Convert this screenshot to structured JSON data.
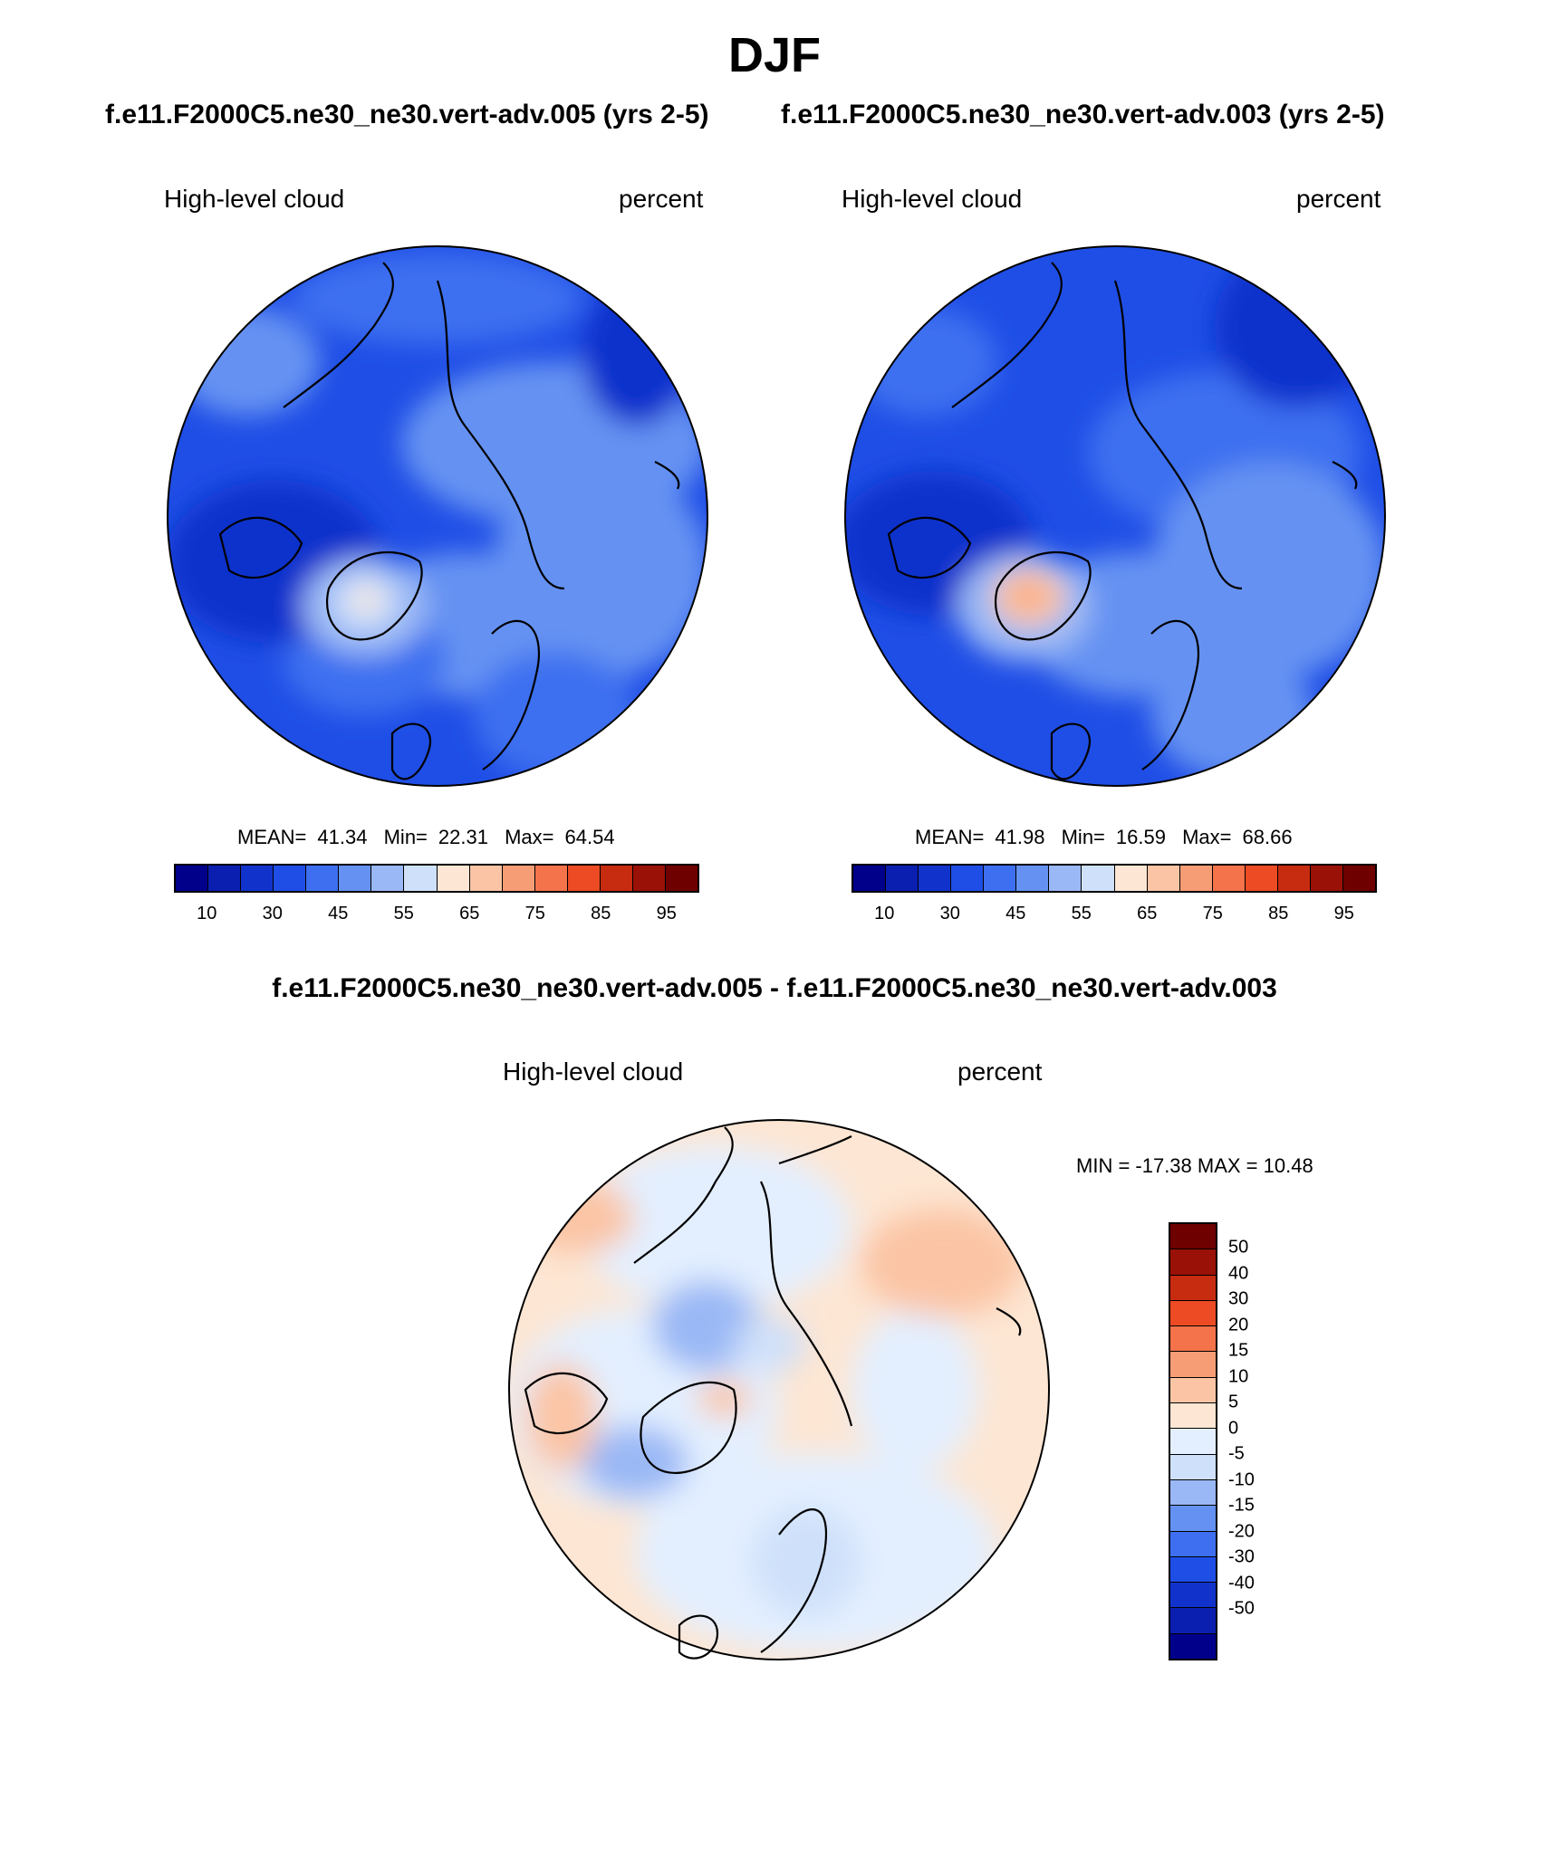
{
  "title": "DJF",
  "panels": [
    {
      "case": "f.e11.F2000C5.ne30_ne30.vert-adv.005 (yrs 2-5)",
      "variable": "High-level cloud",
      "units": "percent",
      "stats": {
        "mean_label": "MEAN=",
        "mean": "41.34",
        "min_label": "Min=",
        "min": "22.31",
        "max_label": "Max=",
        "max": "64.54"
      }
    },
    {
      "case": "f.e11.F2000C5.ne30_ne30.vert-adv.003 (yrs 2-5)",
      "variable": "High-level cloud",
      "units": "percent",
      "stats": {
        "mean_label": "MEAN=",
        "mean": "41.98",
        "min_label": "Min=",
        "min": "16.59",
        "max_label": "Max=",
        "max": "68.66"
      }
    }
  ],
  "colorbar_top": {
    "colors": [
      "#00008b",
      "#0a1fb0",
      "#1133cc",
      "#1f4ee6",
      "#3d6ff0",
      "#6592f2",
      "#9ab8f5",
      "#cfe0fa",
      "#fde6d3",
      "#fbc5a5",
      "#f79d75",
      "#f4734a",
      "#ec4b23",
      "#c72b10",
      "#9a1107",
      "#6e0000"
    ],
    "tick_labels": [
      "10",
      "30",
      "45",
      "55",
      "65",
      "75",
      "85",
      "95"
    ]
  },
  "difference": {
    "title": "f.e11.F2000C5.ne30_ne30.vert-adv.005 - f.e11.F2000C5.ne30_ne30.vert-adv.003",
    "variable": "High-level cloud",
    "units": "percent",
    "minmax": "MIN = -17.38 MAX =  10.48"
  },
  "colorbar_diff": {
    "colors": [
      "#6e0000",
      "#9a1107",
      "#c72b10",
      "#ec4b23",
      "#f4734a",
      "#f79d75",
      "#fbc5a5",
      "#fde6d3",
      "#e3efff",
      "#cfe0fa",
      "#9ab8f5",
      "#6592f2",
      "#3d6ff0",
      "#1f4ee6",
      "#1133cc",
      "#0a1fb0",
      "#00008b"
    ],
    "tick_labels": [
      "50",
      "40",
      "30",
      "20",
      "15",
      "10",
      "5",
      "0",
      "-5",
      "-10",
      "-15",
      "-20",
      "-30",
      "-40",
      "-50"
    ]
  }
}
